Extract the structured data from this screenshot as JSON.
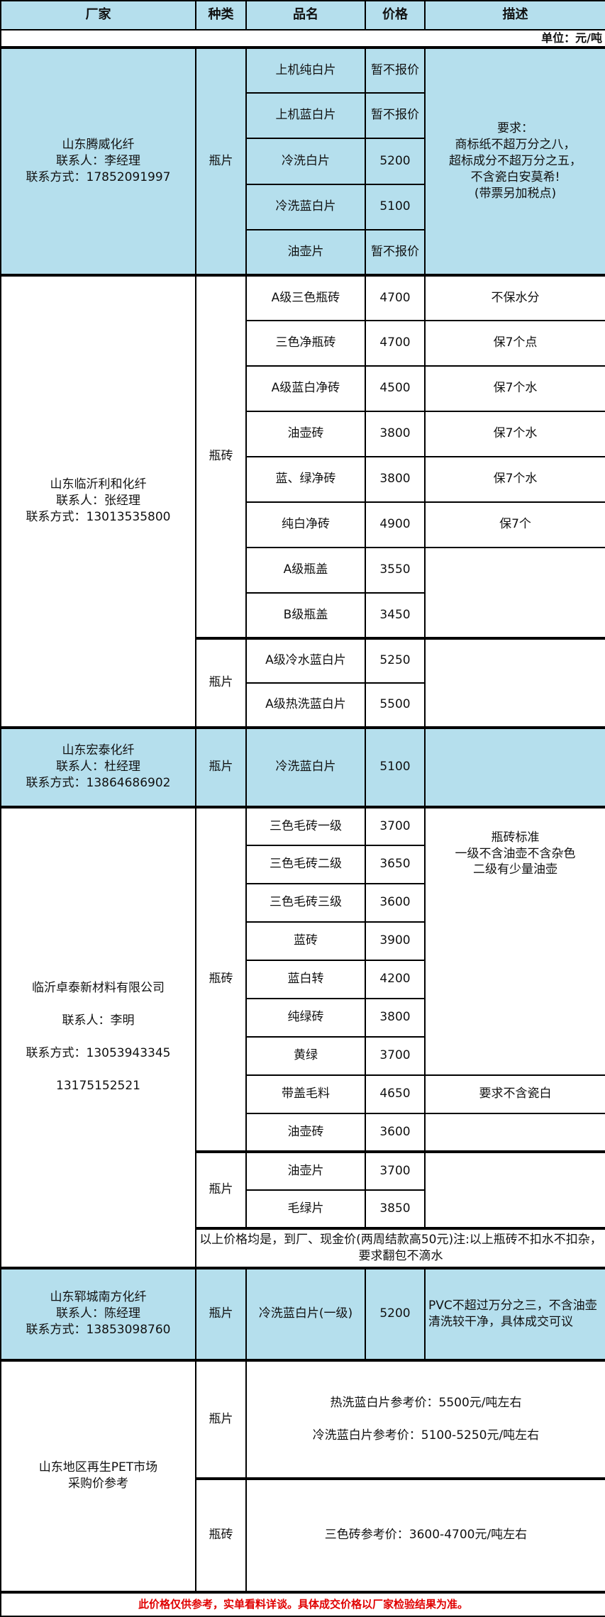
{
  "header": {
    "vendor": "厂家",
    "category": "种类",
    "product": "品名",
    "price": "价格",
    "description": "描述"
  },
  "unit": "单位：元/吨",
  "colors": {
    "highlight": "#b5dfed",
    "footer_text": "#e00000"
  },
  "sections": [
    {
      "company": "山东腾威化纤\n联系人：李经理\n联系方式：17852091997",
      "category": "瓶片",
      "items": [
        {
          "name": "上机纯白片",
          "price": "暂不报价"
        },
        {
          "name": "上机蓝白片",
          "price": "暂不报价"
        },
        {
          "name": "冷洗白片",
          "price": "5200"
        },
        {
          "name": "冷洗蓝白片",
          "price": "5100"
        },
        {
          "name": "油壶片",
          "price": "暂不报价"
        }
      ],
      "description": "要求：\n商标纸不超万分之八，\n超标成分不超万分之五，\n不含瓷白安莫希!\n(带票另加税点)"
    },
    {
      "company": "山东临沂利和化纤\n联系人：张经理\n联系方式：13013535800",
      "groups": [
        {
          "category": "瓶砖",
          "items": [
            {
              "name": "A级三色瓶砖",
              "price": "4700",
              "desc": "不保水分"
            },
            {
              "name": "三色净瓶砖",
              "price": "4700",
              "desc": "保7个点"
            },
            {
              "name": "A级蓝白净砖",
              "price": "4500",
              "desc": "保7个水"
            },
            {
              "name": "油壶砖",
              "price": "3800",
              "desc": "保7个水"
            },
            {
              "name": "蓝、绿净砖",
              "price": "3800",
              "desc": "保7个水"
            },
            {
              "name": "纯白净砖",
              "price": "4900",
              "desc": "保7个"
            },
            {
              "name": "A级瓶盖",
              "price": "3550"
            },
            {
              "name": "B级瓶盖",
              "price": "3450"
            }
          ]
        },
        {
          "category": "瓶片",
          "items": [
            {
              "name": "A级冷水蓝白片",
              "price": "5250"
            },
            {
              "name": "A级热洗蓝白片",
              "price": "5500"
            }
          ]
        }
      ]
    },
    {
      "company": "山东宏泰化纤\n联系人：杜经理\n联系方式：13864686902",
      "category": "瓶片",
      "items": [
        {
          "name": "冷洗蓝白片",
          "price": "5100"
        }
      ]
    },
    {
      "company": "临沂卓泰新材料有限公司\n\n联系人：李明\n\n联系方式：13053943345\n\n13175152521",
      "groups": [
        {
          "category": "瓶砖",
          "description": "瓶砖标准\n一级不含油壶不含杂色\n二级有少量油壶",
          "items": [
            {
              "name": "三色毛砖一级",
              "price": "3700"
            },
            {
              "name": "三色毛砖二级",
              "price": "3650"
            },
            {
              "name": "三色毛砖三级",
              "price": "3600"
            },
            {
              "name": "蓝砖",
              "price": "3900"
            },
            {
              "name": "蓝白转",
              "price": "4200"
            },
            {
              "name": "纯绿砖",
              "price": "3800"
            },
            {
              "name": "黄绿",
              "price": "3700"
            },
            {
              "name": "带盖毛料",
              "price": "4650",
              "desc": "要求不含瓷白"
            },
            {
              "name": "油壶砖",
              "price": "3600"
            }
          ]
        },
        {
          "category": "瓶片",
          "items": [
            {
              "name": "油壶片",
              "price": "3700"
            },
            {
              "name": "毛绿片",
              "price": "3850"
            }
          ]
        }
      ],
      "note": "以上价格均是，到厂、现金价(两周结款高50元)注:以上瓶砖不扣水不扣杂，要求翻包不滴水"
    },
    {
      "company": "山东郓城南方化纤\n联系人：陈经理\n联系方式：13853098760",
      "category": "瓶片",
      "items": [
        {
          "name": "冷洗蓝白片(一级)",
          "price": "5200"
        }
      ],
      "description": "PVC不超过万分之三，不含油壶清洗较干净，具体成交可议"
    },
    {
      "company": "山东地区再生PET市场\n采购价参考",
      "groups": [
        {
          "category": "瓶片",
          "text": "热洗蓝白片参考价：5500元/吨左右\n\n冷洗蓝白片参考价：5100-5250元/吨左右"
        },
        {
          "category": "瓶砖",
          "text": "三色砖参考价：3600-4700元/吨左右"
        }
      ]
    }
  ],
  "footer": "此价格仅供参考，实单看料详谈。具体成交价格以厂家检验结果为准。"
}
